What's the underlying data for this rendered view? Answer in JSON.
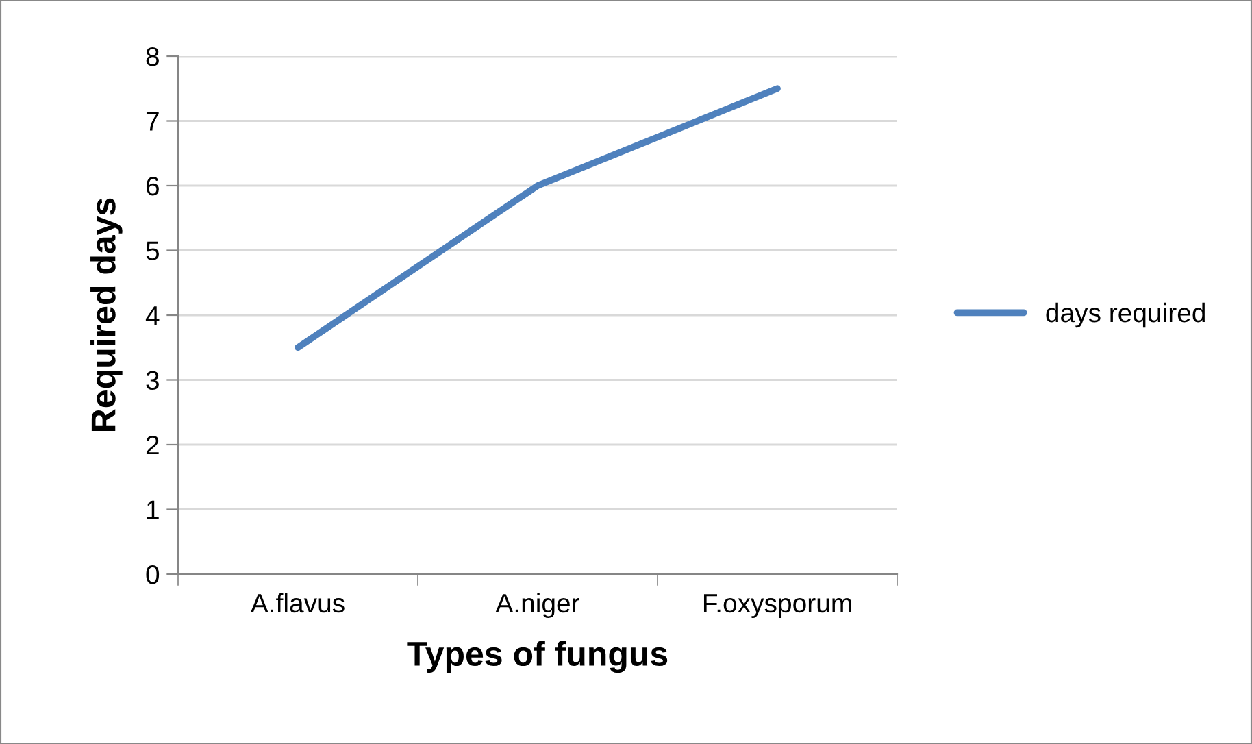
{
  "chart_data": {
    "type": "line",
    "xlabel": "Types of fungus",
    "ylabel": "Required days",
    "categories": [
      "A.flavus",
      "A.niger",
      "F.oxysporum"
    ],
    "series": [
      {
        "name": "days required",
        "color": "#4f81bd",
        "values": [
          3.5,
          6,
          7.5
        ]
      }
    ],
    "ylim": [
      0,
      8
    ],
    "yticks": [
      0,
      1,
      2,
      3,
      4,
      5,
      6,
      7,
      8
    ],
    "grid": "y",
    "legend": "right",
    "marker": "none",
    "line_style": "solid"
  }
}
